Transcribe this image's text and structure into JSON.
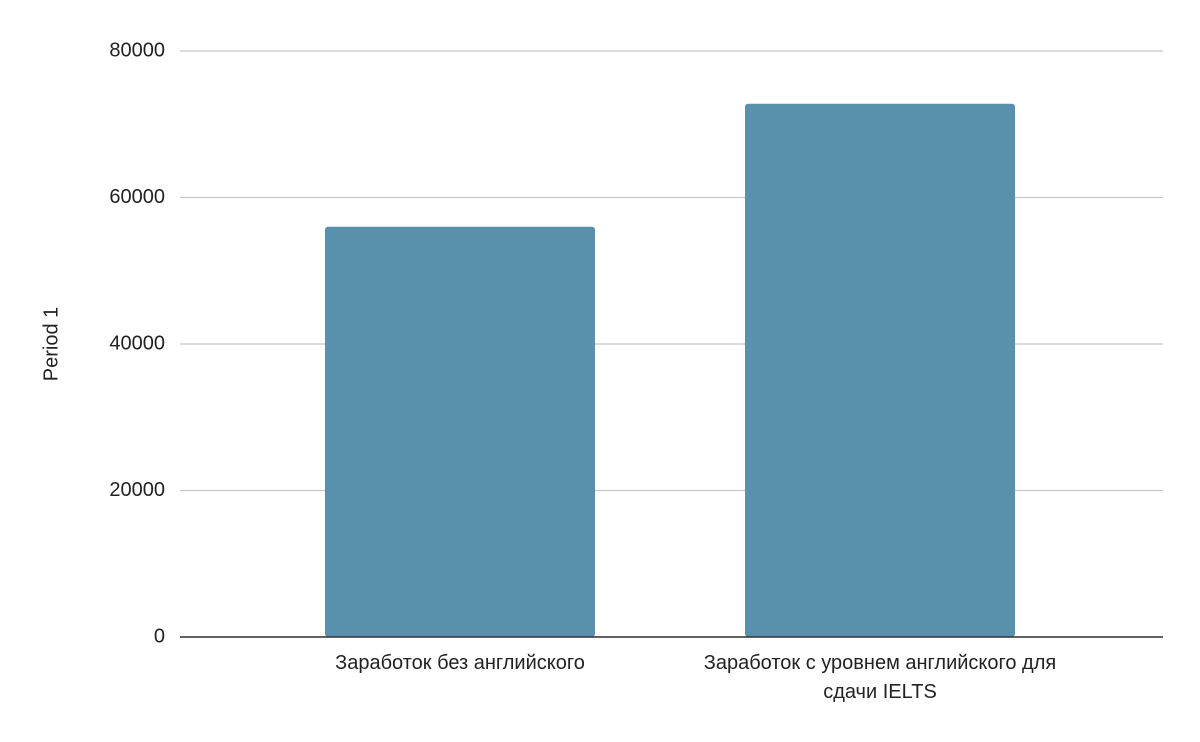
{
  "chart_data": {
    "type": "bar",
    "ylabel": "Period 1",
    "categories": [
      "Заработок без английского",
      "Заработок с уровнем английского для сдачи IELTS"
    ],
    "values": [
      56000,
      72800
    ],
    "color": "#5990ae",
    "ylim": [
      0,
      80000
    ],
    "yticks": [
      0,
      20000,
      40000,
      60000,
      80000
    ],
    "grid": true
  }
}
